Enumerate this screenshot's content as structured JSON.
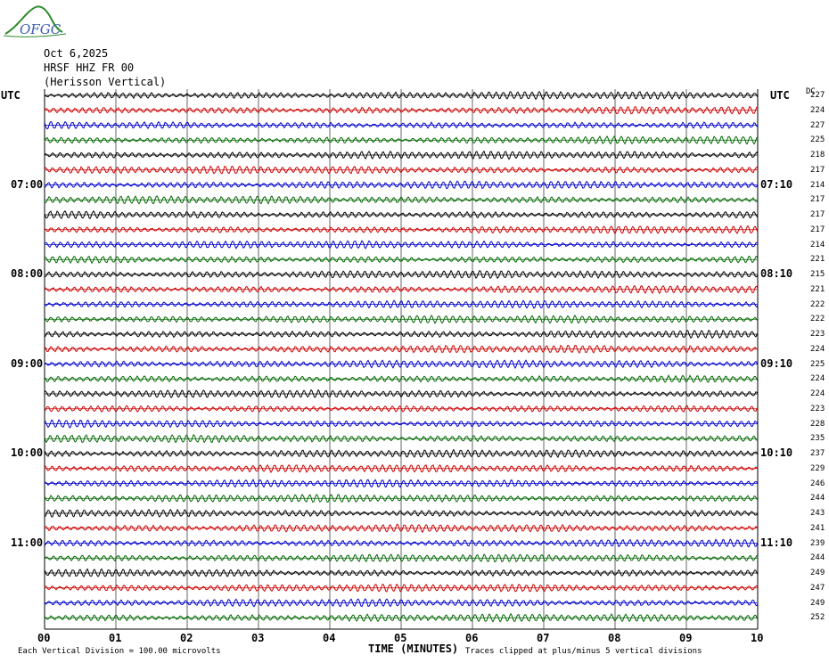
{
  "logo": {
    "text": "OFGC"
  },
  "header": {
    "date": "Oct 6,2025",
    "station": "HRSF HHZ FR 00",
    "name": "(Herisson Vertical)"
  },
  "axes": {
    "left_tz": "UTC",
    "right_tz": "UTC",
    "dc_header": "DC",
    "xlabel": "TIME (MINUTES)"
  },
  "footer": {
    "left_note": "Each Vertical Division =  100.00 microvolts",
    "right_note": "Traces clipped at plus/minus 5 vertical divisions"
  },
  "colors": {
    "trace_cycle": [
      "#000000",
      "#cc0000",
      "#0000cc",
      "#006600"
    ],
    "grid": "#000000"
  },
  "chart_data": {
    "type": "line",
    "title": "",
    "x_ticks": [
      "00",
      "01",
      "02",
      "03",
      "04",
      "05",
      "06",
      "07",
      "08",
      "09",
      "10"
    ],
    "xlim": [
      0,
      10
    ],
    "trace_count": 36,
    "left_time_labels": [
      "07:00",
      "08:00",
      "09:00",
      "10:00",
      "11:00"
    ],
    "right_time_labels": [
      "07:10",
      "08:10",
      "09:10",
      "10:10",
      "11:10"
    ],
    "time_label_every_n_traces": 6,
    "time_label_first_trace": 6,
    "dc_offsets": [
      227,
      224,
      227,
      225,
      218,
      217,
      214,
      217,
      217,
      217,
      214,
      221,
      215,
      221,
      222,
      222,
      223,
      224,
      225,
      224,
      224,
      223,
      228,
      235,
      237,
      229,
      246,
      244,
      243,
      241,
      239,
      244,
      249,
      247,
      249,
      252
    ]
  }
}
